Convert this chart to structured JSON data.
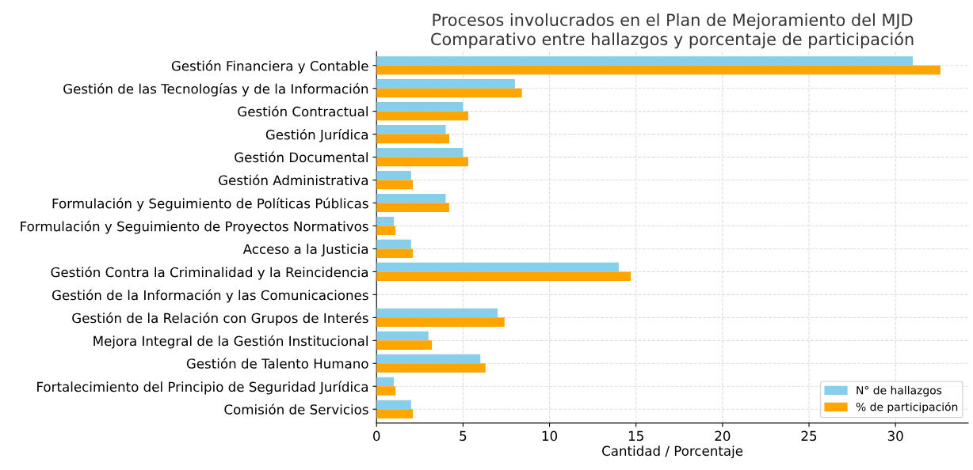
{
  "chart_data": {
    "type": "bar",
    "orientation": "horizontal",
    "title": "Procesos involucrados en el Plan de Mejoramiento del MJD\nComparativo entre hallazgos y porcentaje de participación",
    "xlabel": "Cantidad / Porcentaje",
    "categories": [
      "Gestión Financiera y Contable",
      "Gestión de las Tecnologías y de la Información",
      "Gestión Contractual",
      "Gestión Jurídica",
      "Gestión Documental",
      "Gestión Administrativa",
      "Formulación y Seguimiento de Políticas Públicas",
      "Formulación y Seguimiento de Proyectos Normativos",
      "Acceso a la Justicia",
      "Gestión Contra la Criminalidad y la Reincidencia",
      "Gestión de la Información y las Comunicaciones",
      "Gestión de la Relación con Grupos de Interés",
      "Mejora Integral de la Gestión Institucional",
      "Gestión de Talento Humano",
      "Fortalecimiento del Principio de Seguridad Jurídica",
      "Comisión de Servicios"
    ],
    "series": [
      {
        "name": "N° de hallazgos",
        "color": "#87ceeb",
        "values": [
          31,
          8,
          5,
          4,
          5,
          2,
          4,
          1,
          2,
          14,
          0,
          7,
          3,
          6,
          1,
          2
        ]
      },
      {
        "name": "% de participación",
        "color": "#ffa500",
        "values": [
          32.6,
          8.4,
          5.3,
          4.2,
          5.3,
          2.1,
          4.2,
          1.1,
          2.1,
          14.7,
          0,
          7.4,
          3.2,
          6.3,
          1.1,
          2.1
        ]
      }
    ],
    "xlim": [
      0,
      34.2
    ],
    "xticks": [
      0,
      5,
      10,
      15,
      20,
      25,
      30
    ],
    "grid": true,
    "legend": "bottom right"
  }
}
